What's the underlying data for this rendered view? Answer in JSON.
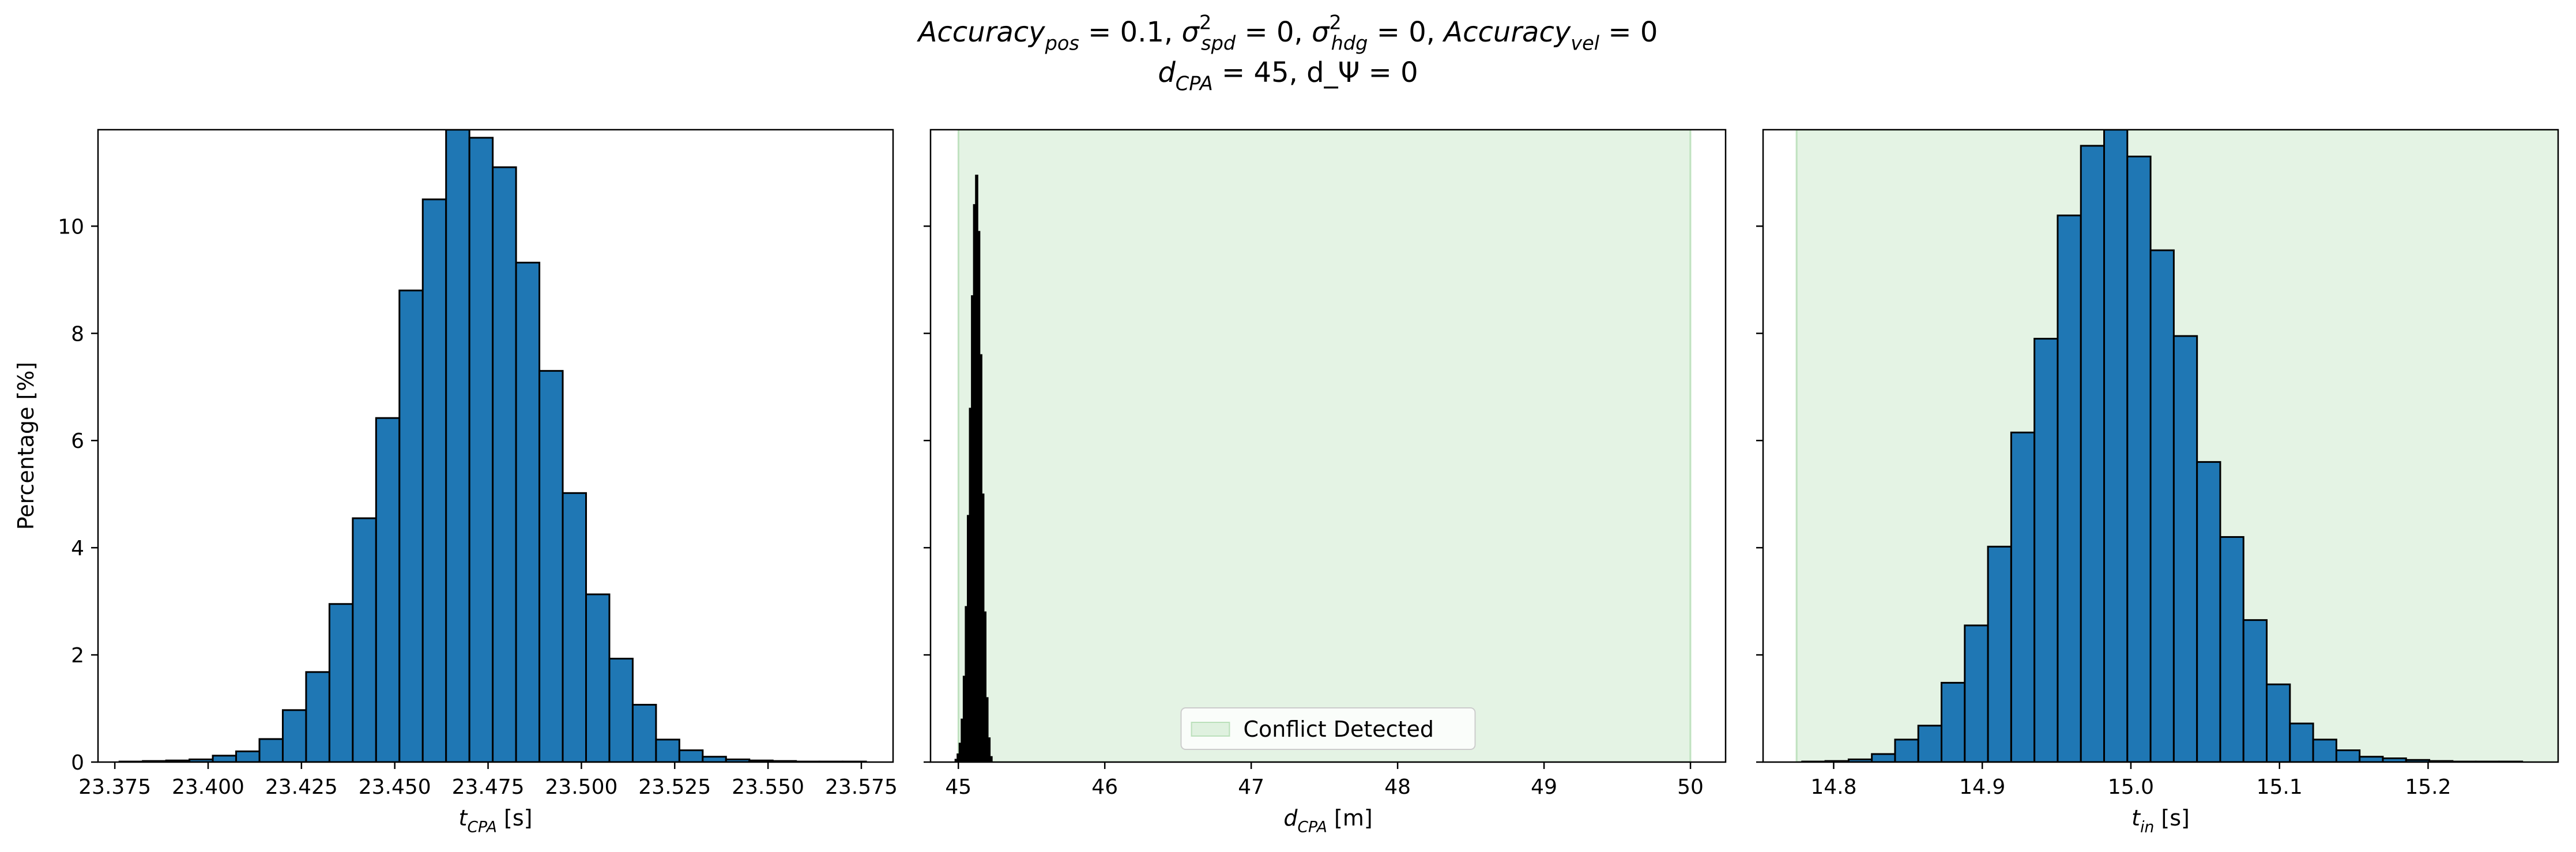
{
  "figure": {
    "title_line1": "Accuracy_pos = 0.1, σ²_spd = 0, σ²_hdg = 0, Accuracy_vel = 0",
    "title_line2": "d_CPA = 45, d_Ψ = 0"
  },
  "colors": {
    "bar_fill": "#1f77b4",
    "bar_edge": "#000000",
    "region_fill": "#2ca02c",
    "dark_fill": "#000000"
  },
  "chart_data": [
    {
      "type": "bar",
      "panel": "left",
      "xlabel": "t_CPA [s]",
      "ylabel": "Percentage [%]",
      "xlim": [
        23.3705,
        23.5835
      ],
      "ylim": [
        0,
        11.8
      ],
      "xticks": [
        "23.375",
        "23.400",
        "23.425",
        "23.450",
        "23.475",
        "23.500",
        "23.525",
        "23.550",
        "23.575"
      ],
      "yticks": [
        "0",
        "2",
        "4",
        "6",
        "8",
        "10"
      ],
      "bin_width": 0.00625,
      "bin_starts": [
        23.37625,
        23.3825,
        23.38875,
        23.395,
        23.40125,
        23.4075,
        23.41375,
        23.42,
        23.42625,
        23.4325,
        23.43875,
        23.445,
        23.45125,
        23.4575,
        23.46375,
        23.47,
        23.47625,
        23.4825,
        23.48875,
        23.495,
        23.50125,
        23.5075,
        23.51375,
        23.52,
        23.52625,
        23.5325,
        23.53875,
        23.545,
        23.55125,
        23.5575,
        23.56375,
        23.57
      ],
      "values": [
        0.01,
        0.02,
        0.03,
        0.05,
        0.12,
        0.2,
        0.43,
        0.97,
        1.68,
        2.95,
        4.55,
        6.42,
        8.8,
        10.5,
        11.8,
        11.65,
        11.1,
        9.32,
        7.3,
        5.02,
        3.13,
        1.93,
        1.07,
        0.42,
        0.22,
        0.1,
        0.05,
        0.03,
        0.02,
        0.01,
        0.01,
        0.01
      ]
    },
    {
      "type": "bar",
      "panel": "middle",
      "xlabel": "d_CPA [m]",
      "xlim": [
        44.81,
        50.24
      ],
      "ylim": [
        0,
        11.8
      ],
      "xticks": [
        "45",
        "46",
        "47",
        "48",
        "49",
        "50"
      ],
      "yticks": [
        "0",
        "2",
        "4",
        "6",
        "8",
        "10"
      ],
      "region": {
        "x0": 45.0,
        "x1": 50.0,
        "label": "Conflict Detected"
      },
      "legend_position": "lower center",
      "bin_width": 0.014,
      "bin_starts": [
        44.978,
        44.992,
        45.006,
        45.02,
        45.034,
        45.048,
        45.062,
        45.076,
        45.09,
        45.104,
        45.118,
        45.132,
        45.146,
        45.16,
        45.174,
        45.188,
        45.202,
        45.216
      ],
      "values": [
        0.05,
        0.15,
        0.35,
        0.8,
        1.6,
        2.9,
        4.6,
        6.6,
        8.7,
        10.4,
        10.95,
        9.9,
        7.6,
        5.0,
        2.8,
        1.2,
        0.45,
        0.1
      ]
    },
    {
      "type": "bar",
      "panel": "right",
      "xlabel": "t_in [s]",
      "xlim": [
        14.7525,
        15.2875
      ],
      "ylim": [
        0,
        11.8
      ],
      "xticks": [
        "14.8",
        "14.9",
        "15.0",
        "15.1",
        "15.2"
      ],
      "yticks": [
        "0",
        "2",
        "4",
        "6",
        "8",
        "10"
      ],
      "region": {
        "x0": 14.775,
        "x1": 15.3
      },
      "bin_width": 0.01563,
      "bin_starts": [
        14.7788,
        14.79443,
        14.81006,
        14.82569,
        14.84132,
        14.85695,
        14.87258,
        14.88821,
        14.90384,
        14.91947,
        14.9351,
        14.95073,
        14.96636,
        14.98199,
        14.99762,
        15.01325,
        15.02888,
        15.04451,
        15.06014,
        15.07577,
        15.0914,
        15.10703,
        15.12266,
        15.13829,
        15.15392,
        15.16955,
        15.18518,
        15.20081,
        15.21644,
        15.23207,
        15.2477
      ],
      "values": [
        0.01,
        0.02,
        0.05,
        0.15,
        0.42,
        0.68,
        1.48,
        2.55,
        4.02,
        6.15,
        7.9,
        10.2,
        11.5,
        11.8,
        11.3,
        9.55,
        7.95,
        5.6,
        4.2,
        2.65,
        1.45,
        0.72,
        0.42,
        0.22,
        0.1,
        0.07,
        0.04,
        0.02,
        0.01,
        0.01,
        0.01
      ]
    }
  ]
}
